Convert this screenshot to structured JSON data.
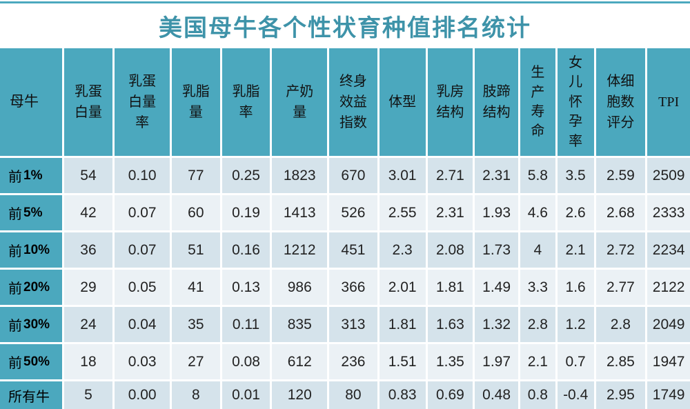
{
  "title": "美国母牛各个性状育种值排名统计",
  "colors": {
    "accent_teal": "#4BA8BE",
    "title_teal": "#3E93A9",
    "row_dark": "#D5E3EB",
    "row_light": "#EBF1F5"
  },
  "chart_data": {
    "type": "table",
    "title": "美国母牛各个性状育种值排名统计",
    "columns": [
      {
        "name": "母牛",
        "display": "母牛"
      },
      {
        "name": "乳蛋白量",
        "display": "乳蛋\n白量"
      },
      {
        "name": "乳蛋白量率",
        "display": "乳蛋\n白量\n率"
      },
      {
        "name": "乳脂量",
        "display": "乳脂\n量"
      },
      {
        "name": "乳脂率",
        "display": "乳脂\n率"
      },
      {
        "name": "产奶量",
        "display": "产奶\n量"
      },
      {
        "name": "终身效益指数",
        "display": "终身\n效益\n指数"
      },
      {
        "name": "体型",
        "display": "体型"
      },
      {
        "name": "乳房结构",
        "display": "乳房\n结构"
      },
      {
        "name": "肢蹄结构",
        "display": "肢蹄\n结构"
      },
      {
        "name": "生产寿命",
        "display": "生\n产\n寿\n命"
      },
      {
        "name": "女儿怀孕率",
        "display": "女\n儿\n怀\n孕\n率"
      },
      {
        "name": "体细胞数评分",
        "display": "体细\n胞数\n评分"
      },
      {
        "name": "TPI",
        "display": "TPI"
      }
    ],
    "rows": [
      {
        "label": "前 1%",
        "values": [
          "54",
          "0.10",
          "77",
          "0.25",
          "1823",
          "670",
          "3.01",
          "2.71",
          "2.31",
          "5.8",
          "3.5",
          "2.59",
          "2509"
        ]
      },
      {
        "label": "前 5%",
        "values": [
          "42",
          "0.07",
          "60",
          "0.19",
          "1413",
          "526",
          "2.55",
          "2.31",
          "1.93",
          "4.6",
          "2.6",
          "2.68",
          "2333"
        ]
      },
      {
        "label": "前 10%",
        "values": [
          "36",
          "0.07",
          "51",
          "0.16",
          "1212",
          "451",
          "2.3",
          "2.08",
          "1.73",
          "4",
          "2.1",
          "2.72",
          "2234"
        ]
      },
      {
        "label": "前 20%",
        "values": [
          "29",
          "0.05",
          "41",
          "0.13",
          "986",
          "366",
          "2.01",
          "1.81",
          "1.49",
          "3.3",
          "1.6",
          "2.77",
          "2122"
        ]
      },
      {
        "label": "前 30%",
        "values": [
          "24",
          "0.04",
          "35",
          "0.11",
          "835",
          "313",
          "1.81",
          "1.63",
          "1.32",
          "2.8",
          "1.2",
          "2.8",
          "2049"
        ]
      },
      {
        "label": "前 50%",
        "values": [
          "18",
          "0.03",
          "27",
          "0.08",
          "612",
          "236",
          "1.51",
          "1.35",
          "1.97",
          "2.1",
          "0.7",
          "2.85",
          "1947"
        ]
      },
      {
        "label": "所有牛",
        "values": [
          "5",
          "0.00",
          "8",
          "0.01",
          "120",
          "80",
          "0.83",
          "0.69",
          "0.48",
          "0.8",
          "-0.4",
          "2.95",
          "1749"
        ]
      }
    ]
  }
}
